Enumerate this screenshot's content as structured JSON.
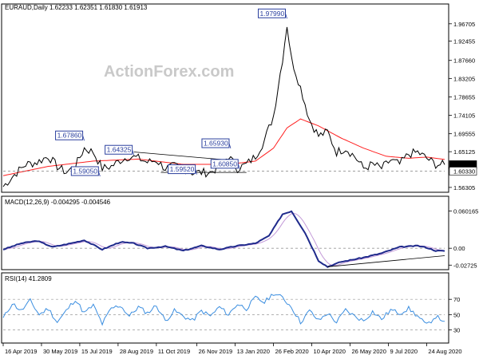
{
  "chart_data": {
    "type": "line",
    "watermark": "ActionForex.com",
    "main": {
      "title": "EURAUD,Daily  1.62233 1.62351 1.61830 1.61913",
      "yticks": [
        "1.96705",
        "1.92455",
        "1.87660",
        "1.83205",
        "1.78655",
        "1.74105",
        "1.69555",
        "1.65125",
        "1.61913",
        "1.60330",
        "1.56305"
      ],
      "ylim": [
        1.555,
        2.01
      ],
      "current_price": "1.61913",
      "support_level": "1.60330",
      "annotations": [
        {
          "text": "1.97990",
          "i": 126,
          "v": 1.9799
        },
        {
          "text": "1.67860",
          "i": 36,
          "v": 1.6786
        },
        {
          "text": "1.64325",
          "i": 58,
          "v": 1.6432
        },
        {
          "text": "1.59050",
          "i": 43,
          "v": 1.5905
        },
        {
          "text": "1.65930",
          "i": 101,
          "v": 1.6593
        },
        {
          "text": "1.60850",
          "i": 105,
          "v": 1.6085
        },
        {
          "text": "1.59520",
          "i": 86,
          "v": 1.5952
        }
      ],
      "price_anchors": [
        [
          0,
          1.565
        ],
        [
          5,
          1.595
        ],
        [
          10,
          1.62
        ],
        [
          15,
          1.625
        ],
        [
          20,
          1.64
        ],
        [
          24,
          1.615
        ],
        [
          28,
          1.6
        ],
        [
          32,
          1.615
        ],
        [
          36,
          1.66
        ],
        [
          40,
          1.65
        ],
        [
          44,
          1.61
        ],
        [
          48,
          1.615
        ],
        [
          52,
          1.63
        ],
        [
          56,
          1.64
        ],
        [
          60,
          1.635
        ],
        [
          64,
          1.625
        ],
        [
          68,
          1.63
        ],
        [
          72,
          1.61
        ],
        [
          76,
          1.615
        ],
        [
          80,
          1.61
        ],
        [
          84,
          1.6
        ],
        [
          88,
          1.6
        ],
        [
          92,
          1.6
        ],
        [
          96,
          1.615
        ],
        [
          100,
          1.64
        ],
        [
          104,
          1.61
        ],
        [
          108,
          1.62
        ],
        [
          112,
          1.64
        ],
        [
          116,
          1.68
        ],
        [
          120,
          1.74
        ],
        [
          124,
          1.88
        ],
        [
          126,
          1.965
        ],
        [
          128,
          1.88
        ],
        [
          132,
          1.81
        ],
        [
          136,
          1.73
        ],
        [
          140,
          1.69
        ],
        [
          144,
          1.7
        ],
        [
          148,
          1.65
        ],
        [
          152,
          1.66
        ],
        [
          156,
          1.64
        ],
        [
          160,
          1.61
        ],
        [
          164,
          1.62
        ],
        [
          168,
          1.61
        ],
        [
          172,
          1.63
        ],
        [
          176,
          1.62
        ],
        [
          180,
          1.645
        ],
        [
          184,
          1.65
        ],
        [
          188,
          1.635
        ],
        [
          192,
          1.62
        ],
        [
          196,
          1.619
        ]
      ],
      "ma_anchors": [
        [
          0,
          1.592
        ],
        [
          20,
          1.615
        ],
        [
          40,
          1.628
        ],
        [
          60,
          1.633
        ],
        [
          80,
          1.62
        ],
        [
          100,
          1.62
        ],
        [
          112,
          1.628
        ],
        [
          120,
          1.66
        ],
        [
          126,
          1.71
        ],
        [
          132,
          1.732
        ],
        [
          140,
          1.715
        ],
        [
          150,
          1.685
        ],
        [
          160,
          1.66
        ],
        [
          170,
          1.64
        ],
        [
          180,
          1.635
        ],
        [
          188,
          1.638
        ],
        [
          196,
          1.632
        ]
      ],
      "trendlines": [
        {
          "from": [
            58,
            1.6505
          ],
          "to": [
            98,
            1.6315
          ]
        },
        {
          "from": [
            70,
            1.6
          ],
          "to": [
            108,
            1.6
          ]
        }
      ]
    },
    "macd": {
      "title": "MACD(12,26,9) -0.004295 -0.004546",
      "yticks": [
        "0.060165",
        "0.00",
        "-0.02725"
      ],
      "ylim": [
        -0.032,
        0.066
      ],
      "anchors": [
        [
          0,
          -0.002
        ],
        [
          8,
          0.008
        ],
        [
          15,
          0.012
        ],
        [
          22,
          0.002
        ],
        [
          30,
          0.008
        ],
        [
          36,
          0.013
        ],
        [
          44,
          -0.002
        ],
        [
          52,
          0.01
        ],
        [
          58,
          0.008
        ],
        [
          64,
          0.0
        ],
        [
          72,
          0.003
        ],
        [
          80,
          -0.004
        ],
        [
          88,
          0.004
        ],
        [
          96,
          -0.002
        ],
        [
          104,
          0.004
        ],
        [
          112,
          0.008
        ],
        [
          118,
          0.02
        ],
        [
          124,
          0.055
        ],
        [
          128,
          0.06
        ],
        [
          134,
          0.025
        ],
        [
          140,
          -0.02
        ],
        [
          144,
          -0.03
        ],
        [
          150,
          -0.022
        ],
        [
          160,
          -0.015
        ],
        [
          168,
          -0.008
        ],
        [
          176,
          0.002
        ],
        [
          184,
          0.004
        ],
        [
          188,
          0.001
        ],
        [
          192,
          -0.004
        ],
        [
          196,
          -0.0043
        ]
      ],
      "trendline": {
        "from": [
          144,
          -0.03
        ],
        "to": [
          196,
          -0.012
        ]
      }
    },
    "rsi": {
      "title": "RSI(14) 41.2809",
      "yticks": [
        "70",
        "50",
        "30"
      ],
      "ylim": [
        15,
        90
      ],
      "anchors": [
        [
          0,
          45
        ],
        [
          4,
          65
        ],
        [
          8,
          55
        ],
        [
          12,
          68
        ],
        [
          16,
          50
        ],
        [
          20,
          58
        ],
        [
          24,
          40
        ],
        [
          28,
          55
        ],
        [
          32,
          70
        ],
        [
          36,
          52
        ],
        [
          40,
          62
        ],
        [
          44,
          38
        ],
        [
          48,
          58
        ],
        [
          52,
          62
        ],
        [
          56,
          48
        ],
        [
          60,
          60
        ],
        [
          64,
          52
        ],
        [
          68,
          62
        ],
        [
          72,
          42
        ],
        [
          76,
          55
        ],
        [
          80,
          48
        ],
        [
          84,
          42
        ],
        [
          88,
          55
        ],
        [
          92,
          48
        ],
        [
          96,
          60
        ],
        [
          100,
          50
        ],
        [
          104,
          64
        ],
        [
          108,
          58
        ],
        [
          112,
          72
        ],
        [
          116,
          66
        ],
        [
          120,
          78
        ],
        [
          124,
          72
        ],
        [
          128,
          60
        ],
        [
          132,
          40
        ],
        [
          136,
          55
        ],
        [
          140,
          42
        ],
        [
          144,
          52
        ],
        [
          148,
          40
        ],
        [
          152,
          56
        ],
        [
          156,
          48
        ],
        [
          160,
          42
        ],
        [
          164,
          54
        ],
        [
          168,
          44
        ],
        [
          172,
          56
        ],
        [
          176,
          52
        ],
        [
          180,
          58
        ],
        [
          184,
          48
        ],
        [
          188,
          36
        ],
        [
          192,
          48
        ],
        [
          196,
          41.28
        ]
      ]
    },
    "xticks": [
      {
        "label": "16 Apr 2019",
        "i": 0
      },
      {
        "label": "30 May 2019",
        "i": 17
      },
      {
        "label": "15 Jul 2019",
        "i": 34
      },
      {
        "label": "28 Aug 2019",
        "i": 51
      },
      {
        "label": "11 Oct 2019",
        "i": 68
      },
      {
        "label": "26 Nov 2019",
        "i": 86
      },
      {
        "label": "13 Jan 2020",
        "i": 103
      },
      {
        "label": "26 Feb 2020",
        "i": 120
      },
      {
        "label": "10 Apr 2020",
        "i": 137
      },
      {
        "label": "26 May 2020",
        "i": 154
      },
      {
        "label": "9 Jul 2020",
        "i": 171
      },
      {
        "label": "24 Aug 2020",
        "i": 188
      }
    ],
    "colors": {
      "price": "#000000",
      "ma": "#ff2020",
      "macd": "#1f2a8c",
      "signal": "#c39ad8",
      "rsi": "#3b8ee0",
      "levels": "#808080",
      "label": "#2a3f9e"
    }
  }
}
